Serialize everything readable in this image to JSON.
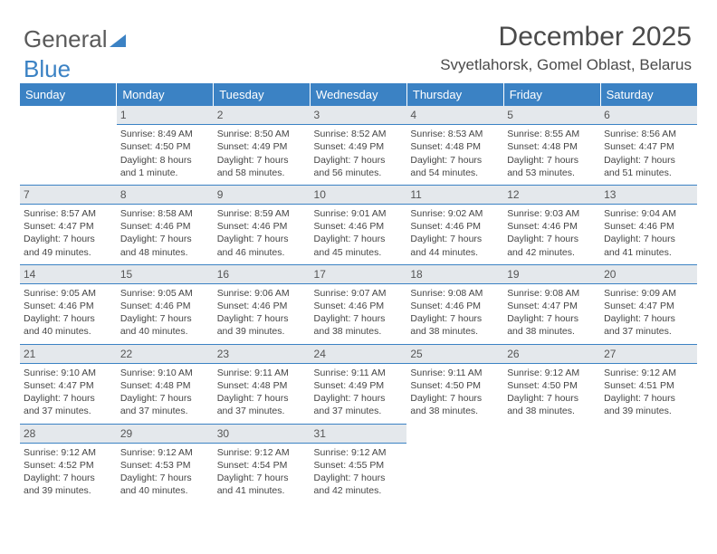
{
  "logo": {
    "part1": "General",
    "part2": "Blue"
  },
  "title": "December 2025",
  "subtitle": "Svyetlahorsk, Gomel Oblast, Belarus",
  "colors": {
    "header_bg": "#3b82c4",
    "header_text": "#ffffff",
    "daynum_bg": "#e4e8ec",
    "divider": "#3b82c4",
    "text": "#454545",
    "logo_gray": "#5a5a5a",
    "logo_blue": "#3b82c4"
  },
  "weekdays": [
    "Sunday",
    "Monday",
    "Tuesday",
    "Wednesday",
    "Thursday",
    "Friday",
    "Saturday"
  ],
  "weeks": [
    [
      null,
      {
        "n": "1",
        "sunrise": "8:49 AM",
        "sunset": "4:50 PM",
        "daylight": "8 hours and 1 minute."
      },
      {
        "n": "2",
        "sunrise": "8:50 AM",
        "sunset": "4:49 PM",
        "daylight": "7 hours and 58 minutes."
      },
      {
        "n": "3",
        "sunrise": "8:52 AM",
        "sunset": "4:49 PM",
        "daylight": "7 hours and 56 minutes."
      },
      {
        "n": "4",
        "sunrise": "8:53 AM",
        "sunset": "4:48 PM",
        "daylight": "7 hours and 54 minutes."
      },
      {
        "n": "5",
        "sunrise": "8:55 AM",
        "sunset": "4:48 PM",
        "daylight": "7 hours and 53 minutes."
      },
      {
        "n": "6",
        "sunrise": "8:56 AM",
        "sunset": "4:47 PM",
        "daylight": "7 hours and 51 minutes."
      }
    ],
    [
      {
        "n": "7",
        "sunrise": "8:57 AM",
        "sunset": "4:47 PM",
        "daylight": "7 hours and 49 minutes."
      },
      {
        "n": "8",
        "sunrise": "8:58 AM",
        "sunset": "4:46 PM",
        "daylight": "7 hours and 48 minutes."
      },
      {
        "n": "9",
        "sunrise": "8:59 AM",
        "sunset": "4:46 PM",
        "daylight": "7 hours and 46 minutes."
      },
      {
        "n": "10",
        "sunrise": "9:01 AM",
        "sunset": "4:46 PM",
        "daylight": "7 hours and 45 minutes."
      },
      {
        "n": "11",
        "sunrise": "9:02 AM",
        "sunset": "4:46 PM",
        "daylight": "7 hours and 44 minutes."
      },
      {
        "n": "12",
        "sunrise": "9:03 AM",
        "sunset": "4:46 PM",
        "daylight": "7 hours and 42 minutes."
      },
      {
        "n": "13",
        "sunrise": "9:04 AM",
        "sunset": "4:46 PM",
        "daylight": "7 hours and 41 minutes."
      }
    ],
    [
      {
        "n": "14",
        "sunrise": "9:05 AM",
        "sunset": "4:46 PM",
        "daylight": "7 hours and 40 minutes."
      },
      {
        "n": "15",
        "sunrise": "9:05 AM",
        "sunset": "4:46 PM",
        "daylight": "7 hours and 40 minutes."
      },
      {
        "n": "16",
        "sunrise": "9:06 AM",
        "sunset": "4:46 PM",
        "daylight": "7 hours and 39 minutes."
      },
      {
        "n": "17",
        "sunrise": "9:07 AM",
        "sunset": "4:46 PM",
        "daylight": "7 hours and 38 minutes."
      },
      {
        "n": "18",
        "sunrise": "9:08 AM",
        "sunset": "4:46 PM",
        "daylight": "7 hours and 38 minutes."
      },
      {
        "n": "19",
        "sunrise": "9:08 AM",
        "sunset": "4:47 PM",
        "daylight": "7 hours and 38 minutes."
      },
      {
        "n": "20",
        "sunrise": "9:09 AM",
        "sunset": "4:47 PM",
        "daylight": "7 hours and 37 minutes."
      }
    ],
    [
      {
        "n": "21",
        "sunrise": "9:10 AM",
        "sunset": "4:47 PM",
        "daylight": "7 hours and 37 minutes."
      },
      {
        "n": "22",
        "sunrise": "9:10 AM",
        "sunset": "4:48 PM",
        "daylight": "7 hours and 37 minutes."
      },
      {
        "n": "23",
        "sunrise": "9:11 AM",
        "sunset": "4:48 PM",
        "daylight": "7 hours and 37 minutes."
      },
      {
        "n": "24",
        "sunrise": "9:11 AM",
        "sunset": "4:49 PM",
        "daylight": "7 hours and 37 minutes."
      },
      {
        "n": "25",
        "sunrise": "9:11 AM",
        "sunset": "4:50 PM",
        "daylight": "7 hours and 38 minutes."
      },
      {
        "n": "26",
        "sunrise": "9:12 AM",
        "sunset": "4:50 PM",
        "daylight": "7 hours and 38 minutes."
      },
      {
        "n": "27",
        "sunrise": "9:12 AM",
        "sunset": "4:51 PM",
        "daylight": "7 hours and 39 minutes."
      }
    ],
    [
      {
        "n": "28",
        "sunrise": "9:12 AM",
        "sunset": "4:52 PM",
        "daylight": "7 hours and 39 minutes."
      },
      {
        "n": "29",
        "sunrise": "9:12 AM",
        "sunset": "4:53 PM",
        "daylight": "7 hours and 40 minutes."
      },
      {
        "n": "30",
        "sunrise": "9:12 AM",
        "sunset": "4:54 PM",
        "daylight": "7 hours and 41 minutes."
      },
      {
        "n": "31",
        "sunrise": "9:12 AM",
        "sunset": "4:55 PM",
        "daylight": "7 hours and 42 minutes."
      },
      null,
      null,
      null
    ]
  ],
  "labels": {
    "sunrise": "Sunrise:",
    "sunset": "Sunset:",
    "daylight": "Daylight:"
  }
}
